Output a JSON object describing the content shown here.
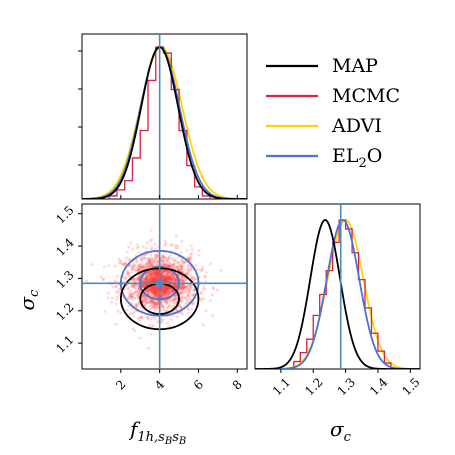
{
  "chart_data": {
    "type": "corner",
    "legend": {
      "placement": "top-right",
      "entries": [
        {
          "label": "MAP",
          "color": "#000000"
        },
        {
          "label": "MCMC",
          "color": "#d62246"
        },
        {
          "label": "ADVI",
          "color": "#ffd700"
        },
        {
          "label": "EL",
          "sub": "2",
          "suffix": "O",
          "color": "#4c72d6"
        }
      ]
    },
    "truth": {
      "f": 4.0,
      "sigma": 1.285,
      "color": "#4b8bbe"
    },
    "xlabel": {
      "text": "f",
      "sub": "1h,s",
      "sub2": "B",
      "sub3": "s",
      "sub4": "B"
    },
    "ylabel_left": "σ",
    "ylabel_left_sub": "c",
    "xlabel_right": "σ",
    "xlabel_right_sub": "c",
    "f_range": [
      0.0,
      8.5
    ],
    "sigma_range": [
      1.02,
      1.53
    ],
    "f_ticks": [
      "2",
      "4",
      "6",
      "8"
    ],
    "f_tick_values": [
      2,
      4,
      6,
      8
    ],
    "sigma_ticks": [
      "1.1",
      "1.2",
      "1.3",
      "1.4",
      "1.5"
    ],
    "sigma_tick_values": [
      1.1,
      1.2,
      1.3,
      1.4,
      1.5
    ],
    "marginal_f": {
      "mcmc_hist": [
        {
          "lo": 1.4,
          "hi": 1.8,
          "h": 0.02
        },
        {
          "lo": 1.8,
          "hi": 2.2,
          "h": 0.06
        },
        {
          "lo": 2.2,
          "hi": 2.6,
          "h": 0.12
        },
        {
          "lo": 2.6,
          "hi": 3.0,
          "h": 0.27
        },
        {
          "lo": 3.0,
          "hi": 3.4,
          "h": 0.45
        },
        {
          "lo": 3.4,
          "hi": 3.8,
          "h": 0.78
        },
        {
          "lo": 3.8,
          "hi": 4.2,
          "h": 1.0
        },
        {
          "lo": 4.2,
          "hi": 4.6,
          "h": 0.96
        },
        {
          "lo": 4.6,
          "hi": 5.0,
          "h": 0.72
        },
        {
          "lo": 5.0,
          "hi": 5.4,
          "h": 0.45
        },
        {
          "lo": 5.4,
          "hi": 5.8,
          "h": 0.22
        },
        {
          "lo": 5.8,
          "hi": 6.2,
          "h": 0.08
        },
        {
          "lo": 6.2,
          "hi": 6.6,
          "h": 0.02
        }
      ],
      "map": {
        "mu": 4.0,
        "sd": 0.95
      },
      "advi": {
        "mu": 4.08,
        "sd": 1.08
      },
      "el2o": {
        "mu": 4.02,
        "sd": 1.0
      }
    },
    "marginal_sigma": {
      "mcmc_hist": [
        {
          "lo": 1.14,
          "hi": 1.16,
          "h": 0.05
        },
        {
          "lo": 1.16,
          "hi": 1.18,
          "h": 0.11
        },
        {
          "lo": 1.18,
          "hi": 1.2,
          "h": 0.2
        },
        {
          "lo": 1.2,
          "hi": 1.22,
          "h": 0.36
        },
        {
          "lo": 1.22,
          "hi": 1.24,
          "h": 0.5
        },
        {
          "lo": 1.24,
          "hi": 1.26,
          "h": 0.66
        },
        {
          "lo": 1.26,
          "hi": 1.28,
          "h": 0.85
        },
        {
          "lo": 1.28,
          "hi": 1.3,
          "h": 1.0
        },
        {
          "lo": 1.3,
          "hi": 1.32,
          "h": 0.94
        },
        {
          "lo": 1.32,
          "hi": 1.34,
          "h": 0.78
        },
        {
          "lo": 1.34,
          "hi": 1.36,
          "h": 0.6
        },
        {
          "lo": 1.36,
          "hi": 1.38,
          "h": 0.41
        },
        {
          "lo": 1.38,
          "hi": 1.4,
          "h": 0.24
        },
        {
          "lo": 1.4,
          "hi": 1.42,
          "h": 0.12
        },
        {
          "lo": 1.42,
          "hi": 1.44,
          "h": 0.04
        }
      ],
      "map": {
        "mu": 1.237,
        "sd": 0.046
      },
      "advi": {
        "mu": 1.3,
        "sd": 0.055
      },
      "el2o": {
        "mu": 1.292,
        "sd": 0.05
      }
    },
    "joint": {
      "scatter": {
        "mu_f": 4.0,
        "sd_f": 1.0,
        "mu_s": 1.285,
        "sd_s": 0.05,
        "count": 1400,
        "color": "#ff3b3b"
      },
      "map_center": [
        4.0,
        1.237
      ],
      "map_ellipses": [
        {
          "rf": 1.0,
          "rs": 0.047
        },
        {
          "rf": 2.0,
          "rs": 0.094
        }
      ],
      "el2o_center": [
        4.0,
        1.285
      ],
      "el2o_ellipses": [
        {
          "rf": 1.0,
          "rs": 0.05
        },
        {
          "rf": 2.0,
          "rs": 0.1
        }
      ]
    }
  }
}
